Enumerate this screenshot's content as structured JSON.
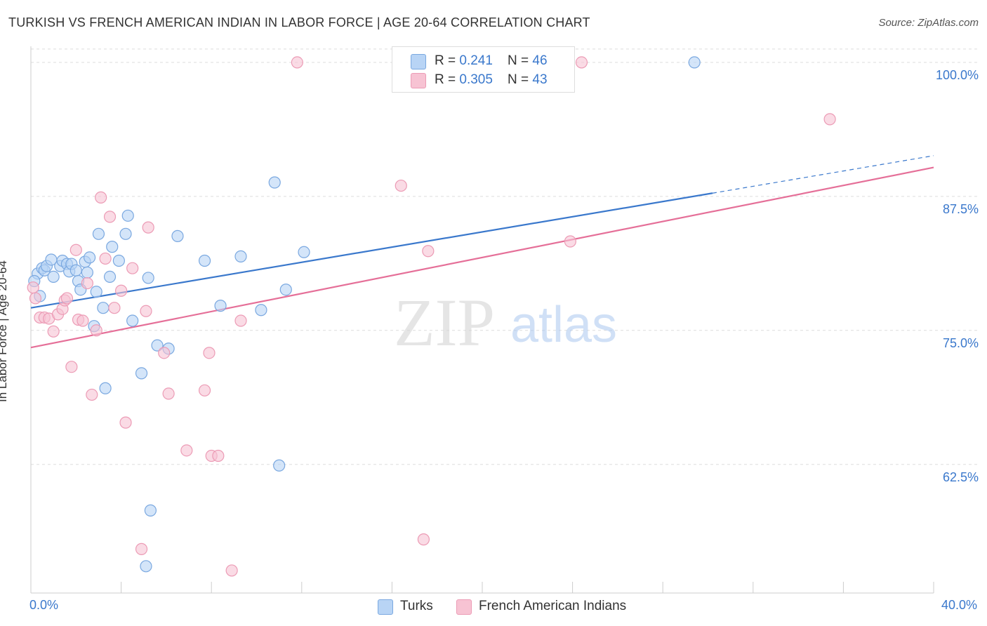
{
  "title": "TURKISH VS FRENCH AMERICAN INDIAN IN LABOR FORCE | AGE 20-64 CORRELATION CHART",
  "source": "Source: ZipAtlas.com",
  "watermark": {
    "zip": "ZIP",
    "atlas": "atlas"
  },
  "legend": {
    "rows": [
      {
        "r_label": "R = ",
        "r_value": "0.241",
        "n_label": "N = ",
        "n_value": "46"
      },
      {
        "r_label": "R = ",
        "r_value": "0.305",
        "n_label": "N = ",
        "n_value": "43"
      }
    ]
  },
  "colors": {
    "turks_fill": "#b8d4f5",
    "turks_stroke": "#7aa8e0",
    "turks_line": "#3a78cc",
    "fai_fill": "#f7c3d3",
    "fai_stroke": "#ec9bb5",
    "fai_line": "#e56f98",
    "tick_label": "#3a78cc",
    "grid": "#dddddd"
  },
  "chart_data": {
    "type": "scatter",
    "title": "TURKISH VS FRENCH AMERICAN INDIAN IN LABOR FORCE | AGE 20-64 CORRELATION CHART",
    "xlabel": "",
    "ylabel": "In Labor Force | Age 20-64",
    "xlim": [
      0,
      40
    ],
    "ylim": [
      50.5,
      101.5
    ],
    "x_tick_labels": [
      "0.0%",
      "40.0%"
    ],
    "y_ticks": [
      62.5,
      75.0,
      87.5,
      100.0
    ],
    "y_tick_labels": [
      "62.5%",
      "75.0%",
      "87.5%",
      "100.0%"
    ],
    "grid": true,
    "legend_position": "top-center",
    "series": [
      {
        "name": "Turks",
        "R": 0.241,
        "N": 46,
        "trend": {
          "x0": 0,
          "y0": 77.1,
          "x1": 30.2,
          "y1": 87.8,
          "x_dash_end": 40,
          "y_dash_end": 91.3
        },
        "points": [
          [
            0.3,
            80.3
          ],
          [
            0.5,
            80.8
          ],
          [
            0.6,
            80.6
          ],
          [
            0.7,
            81.0
          ],
          [
            0.9,
            81.6
          ],
          [
            1.0,
            80.0
          ],
          [
            1.3,
            81.0
          ],
          [
            1.4,
            81.5
          ],
          [
            1.6,
            81.2
          ],
          [
            1.7,
            80.5
          ],
          [
            1.8,
            81.2
          ],
          [
            2.0,
            80.6
          ],
          [
            2.1,
            79.6
          ],
          [
            2.2,
            78.8
          ],
          [
            2.4,
            81.4
          ],
          [
            2.5,
            80.4
          ],
          [
            2.6,
            81.8
          ],
          [
            2.8,
            75.4
          ],
          [
            2.9,
            78.6
          ],
          [
            3.0,
            84.0
          ],
          [
            3.2,
            77.1
          ],
          [
            3.3,
            69.6
          ],
          [
            3.5,
            80.0
          ],
          [
            3.6,
            82.8
          ],
          [
            3.9,
            81.5
          ],
          [
            4.2,
            84.0
          ],
          [
            4.3,
            85.7
          ],
          [
            4.5,
            75.9
          ],
          [
            4.9,
            71.0
          ],
          [
            5.1,
            53.0
          ],
          [
            5.2,
            79.9
          ],
          [
            5.3,
            58.2
          ],
          [
            5.6,
            73.6
          ],
          [
            6.1,
            73.3
          ],
          [
            6.5,
            83.8
          ],
          [
            7.7,
            81.5
          ],
          [
            8.4,
            77.3
          ],
          [
            9.3,
            81.9
          ],
          [
            10.2,
            76.9
          ],
          [
            10.8,
            88.8
          ],
          [
            11.0,
            62.4
          ],
          [
            11.3,
            78.8
          ],
          [
            12.1,
            82.3
          ],
          [
            29.4,
            100.0
          ],
          [
            0.15,
            79.6
          ],
          [
            0.4,
            78.2
          ]
        ]
      },
      {
        "name": "French American Indians",
        "R": 0.305,
        "N": 43,
        "trend": {
          "x0": 0,
          "y0": 73.4,
          "x1": 40,
          "y1": 90.2
        },
        "points": [
          [
            0.2,
            78.0
          ],
          [
            0.4,
            76.2
          ],
          [
            0.6,
            76.2
          ],
          [
            0.8,
            76.1
          ],
          [
            1.0,
            74.9
          ],
          [
            1.2,
            76.5
          ],
          [
            1.4,
            77.0
          ],
          [
            1.5,
            77.8
          ],
          [
            1.6,
            78.0
          ],
          [
            1.8,
            71.6
          ],
          [
            2.0,
            82.5
          ],
          [
            2.1,
            76.0
          ],
          [
            2.3,
            75.9
          ],
          [
            2.5,
            79.4
          ],
          [
            2.7,
            69.0
          ],
          [
            2.9,
            75.0
          ],
          [
            3.1,
            87.4
          ],
          [
            3.3,
            81.7
          ],
          [
            3.5,
            85.6
          ],
          [
            3.7,
            77.1
          ],
          [
            4.0,
            78.7
          ],
          [
            4.2,
            66.4
          ],
          [
            4.5,
            80.8
          ],
          [
            4.9,
            54.6
          ],
          [
            5.1,
            76.8
          ],
          [
            5.2,
            84.6
          ],
          [
            5.9,
            72.9
          ],
          [
            6.1,
            69.1
          ],
          [
            6.9,
            63.8
          ],
          [
            7.7,
            69.4
          ],
          [
            7.9,
            72.9
          ],
          [
            8.0,
            63.3
          ],
          [
            8.3,
            63.3
          ],
          [
            8.9,
            52.6
          ],
          [
            9.3,
            75.9
          ],
          [
            11.8,
            100.0
          ],
          [
            16.4,
            88.5
          ],
          [
            17.4,
            55.5
          ],
          [
            17.6,
            82.4
          ],
          [
            23.9,
            83.3
          ],
          [
            24.4,
            100.0
          ],
          [
            35.4,
            94.7
          ],
          [
            0.1,
            79.0
          ]
        ]
      }
    ]
  }
}
